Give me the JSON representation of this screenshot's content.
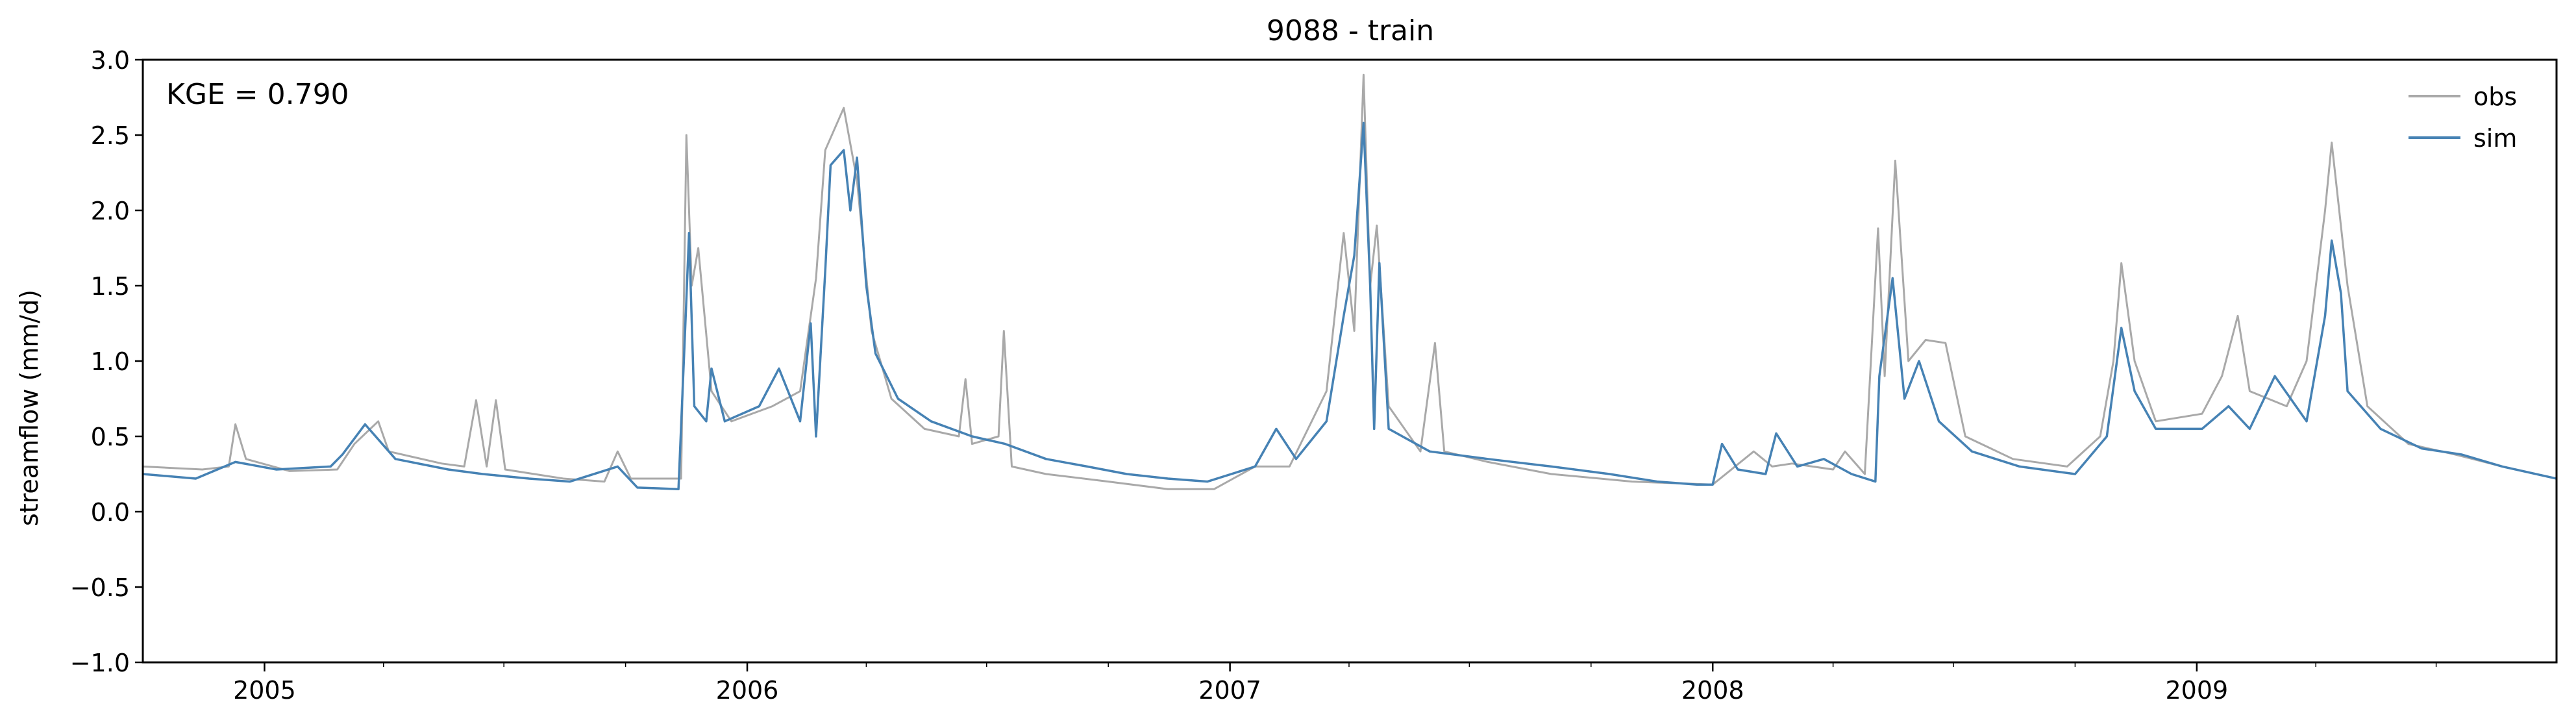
{
  "chart_data": {
    "type": "line",
    "title": "9088 - train",
    "xlabel": "",
    "ylabel": "streamflow (mm/d)",
    "annotation": "KGE = 0.790",
    "ylim": [
      -1.0,
      3.0
    ],
    "xlim": [
      "2004-10-01",
      "2009-09-30"
    ],
    "y_ticks": [
      "−1.0",
      "−0.5",
      "0.0",
      "0.5",
      "1.0",
      "1.5",
      "2.0",
      "2.5",
      "3.0"
    ],
    "x_ticks": [
      "2005",
      "2006",
      "2007",
      "2008",
      "2009"
    ],
    "grid": false,
    "legend_position": "top-right",
    "series": [
      {
        "name": "obs",
        "color": "#a9a9a9",
        "points": [
          [
            "2004-10-01",
            0.3
          ],
          [
            "2004-11-15",
            0.28
          ],
          [
            "2004-12-05",
            0.3
          ],
          [
            "2004-12-10",
            0.58
          ],
          [
            "2004-12-18",
            0.35
          ],
          [
            "2005-01-20",
            0.27
          ],
          [
            "2005-02-25",
            0.28
          ],
          [
            "2005-03-10",
            0.45
          ],
          [
            "2005-03-28",
            0.6
          ],
          [
            "2005-04-05",
            0.4
          ],
          [
            "2005-05-15",
            0.32
          ],
          [
            "2005-06-01",
            0.3
          ],
          [
            "2005-06-10",
            0.74
          ],
          [
            "2005-06-18",
            0.3
          ],
          [
            "2005-06-25",
            0.74
          ],
          [
            "2005-07-02",
            0.28
          ],
          [
            "2005-08-15",
            0.22
          ],
          [
            "2005-09-15",
            0.2
          ],
          [
            "2005-09-25",
            0.4
          ],
          [
            "2005-10-05",
            0.22
          ],
          [
            "2005-11-12",
            0.22
          ],
          [
            "2005-11-16",
            2.5
          ],
          [
            "2005-11-20",
            1.5
          ],
          [
            "2005-11-25",
            1.75
          ],
          [
            "2005-12-05",
            0.8
          ],
          [
            "2005-12-20",
            0.6
          ],
          [
            "2006-01-20",
            0.7
          ],
          [
            "2006-02-10",
            0.8
          ],
          [
            "2006-02-22",
            1.55
          ],
          [
            "2006-03-01",
            2.4
          ],
          [
            "2006-03-15",
            2.68
          ],
          [
            "2006-03-25",
            2.2
          ],
          [
            "2006-04-05",
            1.2
          ],
          [
            "2006-04-20",
            0.75
          ],
          [
            "2006-05-15",
            0.55
          ],
          [
            "2006-06-10",
            0.5
          ],
          [
            "2006-06-15",
            0.88
          ],
          [
            "2006-06-20",
            0.45
          ],
          [
            "2006-07-10",
            0.5
          ],
          [
            "2006-07-14",
            1.2
          ],
          [
            "2006-07-20",
            0.3
          ],
          [
            "2006-08-15",
            0.25
          ],
          [
            "2006-10-01",
            0.2
          ],
          [
            "2006-11-15",
            0.15
          ],
          [
            "2006-12-20",
            0.15
          ],
          [
            "2007-01-20",
            0.3
          ],
          [
            "2007-02-15",
            0.3
          ],
          [
            "2007-03-15",
            0.8
          ],
          [
            "2007-03-28",
            1.85
          ],
          [
            "2007-04-05",
            1.2
          ],
          [
            "2007-04-12",
            2.9
          ],
          [
            "2007-04-17",
            1.5
          ],
          [
            "2007-04-22",
            1.9
          ],
          [
            "2007-05-01",
            0.7
          ],
          [
            "2007-05-25",
            0.4
          ],
          [
            "2007-06-05",
            1.12
          ],
          [
            "2007-06-12",
            0.4
          ],
          [
            "2007-07-15",
            0.33
          ],
          [
            "2007-09-01",
            0.25
          ],
          [
            "2007-11-01",
            0.2
          ],
          [
            "2008-01-01",
            0.18
          ],
          [
            "2008-02-01",
            0.4
          ],
          [
            "2008-02-15",
            0.3
          ],
          [
            "2008-03-01",
            0.32
          ],
          [
            "2008-04-01",
            0.28
          ],
          [
            "2008-04-10",
            0.4
          ],
          [
            "2008-04-25",
            0.25
          ],
          [
            "2008-05-05",
            1.88
          ],
          [
            "2008-05-10",
            0.9
          ],
          [
            "2008-05-18",
            2.33
          ],
          [
            "2008-05-28",
            1.0
          ],
          [
            "2008-06-10",
            1.14
          ],
          [
            "2008-06-25",
            1.12
          ],
          [
            "2008-07-10",
            0.5
          ],
          [
            "2008-08-15",
            0.35
          ],
          [
            "2008-09-25",
            0.3
          ],
          [
            "2008-10-20",
            0.5
          ],
          [
            "2008-10-30",
            1.0
          ],
          [
            "2008-11-05",
            1.65
          ],
          [
            "2008-11-15",
            1.0
          ],
          [
            "2008-12-01",
            0.6
          ],
          [
            "2009-01-05",
            0.65
          ],
          [
            "2009-01-20",
            0.9
          ],
          [
            "2009-02-01",
            1.3
          ],
          [
            "2009-02-10",
            0.8
          ],
          [
            "2009-03-10",
            0.7
          ],
          [
            "2009-03-25",
            1.0
          ],
          [
            "2009-04-08",
            2.0
          ],
          [
            "2009-04-13",
            2.45
          ],
          [
            "2009-04-25",
            1.5
          ],
          [
            "2009-05-10",
            0.7
          ],
          [
            "2009-06-10",
            0.45
          ],
          [
            "2009-07-15",
            0.38
          ],
          [
            "2009-08-20",
            0.3
          ],
          [
            "2009-09-30",
            0.22
          ]
        ]
      },
      {
        "name": "sim",
        "color": "#4682b4",
        "points": [
          [
            "2004-10-01",
            0.25
          ],
          [
            "2004-11-10",
            0.22
          ],
          [
            "2004-12-10",
            0.33
          ],
          [
            "2005-01-10",
            0.28
          ],
          [
            "2005-02-20",
            0.3
          ],
          [
            "2005-03-01",
            0.38
          ],
          [
            "2005-03-18",
            0.58
          ],
          [
            "2005-04-10",
            0.35
          ],
          [
            "2005-05-20",
            0.28
          ],
          [
            "2005-06-15",
            0.25
          ],
          [
            "2005-07-20",
            0.22
          ],
          [
            "2005-08-20",
            0.2
          ],
          [
            "2005-09-25",
            0.3
          ],
          [
            "2005-10-10",
            0.16
          ],
          [
            "2005-11-10",
            0.15
          ],
          [
            "2005-11-15",
            1.2
          ],
          [
            "2005-11-18",
            1.85
          ],
          [
            "2005-11-22",
            0.7
          ],
          [
            "2005-12-01",
            0.6
          ],
          [
            "2005-12-05",
            0.95
          ],
          [
            "2005-12-15",
            0.6
          ],
          [
            "2006-01-10",
            0.7
          ],
          [
            "2006-01-25",
            0.95
          ],
          [
            "2006-02-10",
            0.6
          ],
          [
            "2006-02-18",
            1.25
          ],
          [
            "2006-02-22",
            0.5
          ],
          [
            "2006-03-01",
            1.6
          ],
          [
            "2006-03-05",
            2.3
          ],
          [
            "2006-03-15",
            2.4
          ],
          [
            "2006-03-20",
            2.0
          ],
          [
            "2006-03-25",
            2.35
          ],
          [
            "2006-04-01",
            1.5
          ],
          [
            "2006-04-08",
            1.05
          ],
          [
            "2006-04-25",
            0.75
          ],
          [
            "2006-05-20",
            0.6
          ],
          [
            "2006-06-20",
            0.5
          ],
          [
            "2006-07-15",
            0.45
          ],
          [
            "2006-08-15",
            0.35
          ],
          [
            "2006-09-15",
            0.3
          ],
          [
            "2006-10-15",
            0.25
          ],
          [
            "2006-11-15",
            0.22
          ],
          [
            "2006-12-15",
            0.2
          ],
          [
            "2007-01-20",
            0.3
          ],
          [
            "2007-02-05",
            0.55
          ],
          [
            "2007-02-20",
            0.35
          ],
          [
            "2007-03-15",
            0.6
          ],
          [
            "2007-03-28",
            1.3
          ],
          [
            "2007-04-05",
            1.7
          ],
          [
            "2007-04-12",
            2.58
          ],
          [
            "2007-04-17",
            1.5
          ],
          [
            "2007-04-20",
            0.55
          ],
          [
            "2007-04-24",
            1.65
          ],
          [
            "2007-05-01",
            0.55
          ],
          [
            "2007-06-01",
            0.4
          ],
          [
            "2007-07-15",
            0.35
          ],
          [
            "2007-09-01",
            0.3
          ],
          [
            "2007-10-15",
            0.25
          ],
          [
            "2007-11-20",
            0.2
          ],
          [
            "2007-12-20",
            0.18
          ],
          [
            "2008-01-01",
            0.18
          ],
          [
            "2008-01-08",
            0.45
          ],
          [
            "2008-01-20",
            0.28
          ],
          [
            "2008-02-10",
            0.25
          ],
          [
            "2008-02-18",
            0.52
          ],
          [
            "2008-03-05",
            0.3
          ],
          [
            "2008-03-25",
            0.35
          ],
          [
            "2008-04-15",
            0.25
          ],
          [
            "2008-05-03",
            0.2
          ],
          [
            "2008-05-06",
            0.9
          ],
          [
            "2008-05-16",
            1.55
          ],
          [
            "2008-05-25",
            0.75
          ],
          [
            "2008-06-05",
            1.0
          ],
          [
            "2008-06-20",
            0.6
          ],
          [
            "2008-07-15",
            0.4
          ],
          [
            "2008-08-20",
            0.3
          ],
          [
            "2008-10-01",
            0.25
          ],
          [
            "2008-10-25",
            0.5
          ],
          [
            "2008-11-05",
            1.22
          ],
          [
            "2008-11-15",
            0.8
          ],
          [
            "2008-12-01",
            0.55
          ],
          [
            "2009-01-05",
            0.55
          ],
          [
            "2009-01-25",
            0.7
          ],
          [
            "2009-02-10",
            0.55
          ],
          [
            "2009-03-01",
            0.9
          ],
          [
            "2009-03-25",
            0.6
          ],
          [
            "2009-04-08",
            1.3
          ],
          [
            "2009-04-13",
            1.8
          ],
          [
            "2009-04-20",
            1.45
          ],
          [
            "2009-04-25",
            0.8
          ],
          [
            "2009-05-20",
            0.55
          ],
          [
            "2009-06-20",
            0.42
          ],
          [
            "2009-07-20",
            0.38
          ],
          [
            "2009-08-20",
            0.3
          ],
          [
            "2009-09-30",
            0.22
          ]
        ]
      }
    ]
  }
}
